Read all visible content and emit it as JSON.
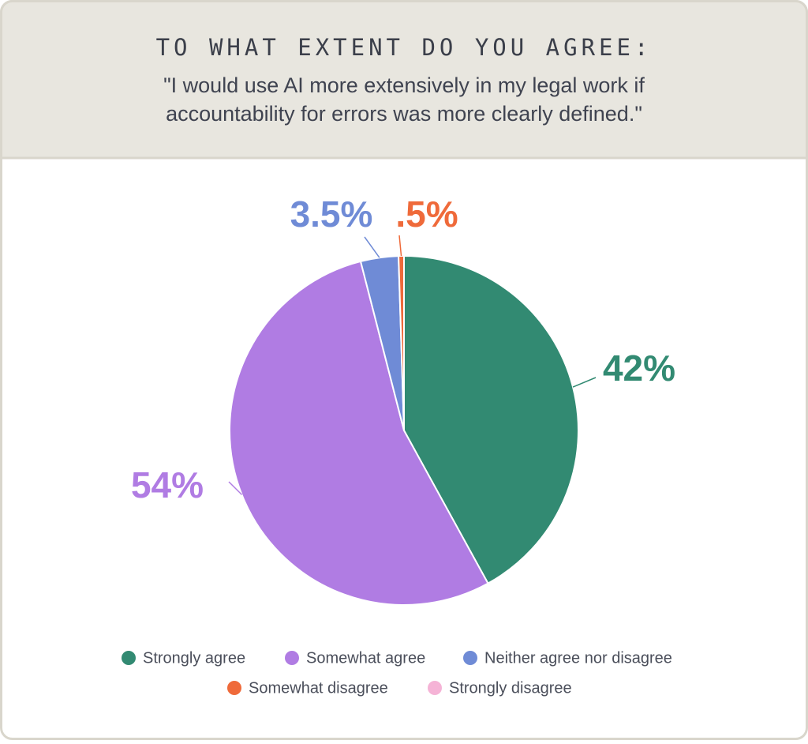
{
  "chart_data": {
    "type": "pie",
    "title": "TO WHAT EXTENT DO YOU AGREE:",
    "subtitle": [
      "\"I would use AI more extensively in my legal work if",
      "accountability for errors was more clearly defined.\""
    ],
    "categories": [
      "Strongly agree",
      "Somewhat agree",
      "Neither agree nor disagree",
      "Somewhat disagree",
      "Strongly disagree"
    ],
    "values": [
      42,
      54,
      3.5,
      0.5,
      0
    ],
    "value_labels": [
      "42%",
      "54%",
      "3.5%",
      ".5%",
      null
    ],
    "colors": [
      "#328a72",
      "#b07ce3",
      "#6f8bd6",
      "#ef6a3a",
      "#f5b3d6"
    ]
  }
}
